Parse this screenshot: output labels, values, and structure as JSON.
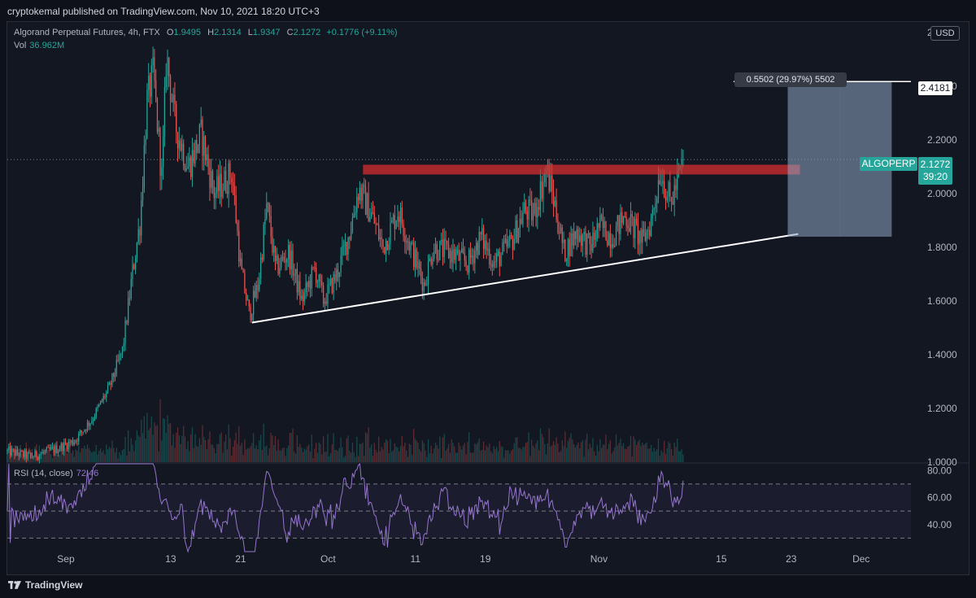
{
  "header": {
    "published": "cryptokemal published on TradingView.com, Nov 10, 2021 18:20 UTC+3"
  },
  "legend": {
    "title": "Algorand Perpetual Futures, 4h, FTX",
    "open_label": "O",
    "open": "1.9495",
    "high_label": "H",
    "high": "2.1314",
    "low_label": "L",
    "low": "1.9347",
    "close_label": "C",
    "close": "2.1272",
    "change": "+0.1776 (+9.11%)",
    "vol_label": "Vol",
    "vol": "36.962M"
  },
  "rsi_legend": {
    "label": "RSI (14, close)",
    "value": "72.46"
  },
  "currency": "USD",
  "measure_label": "0.5502 (29.97%) 5502",
  "target_tag": "2.4181",
  "ticker_tag": {
    "symbol": "ALGOPERP",
    "price": "2.1272",
    "countdown": "39:20"
  },
  "footer": {
    "brand": "TradingView"
  },
  "colors": {
    "up": "#26a69a",
    "down": "#ef5350",
    "rsi": "#9575cd",
    "resistance": "#d32f2f",
    "box": "#8fa6c4",
    "background": "#131722"
  },
  "chart_data": {
    "type": "candlestick",
    "title": "Algorand Perpetual Futures, 4h, FTX",
    "ylim": [
      1.0,
      2.64
    ],
    "y_ticks": [
      "2.6000",
      "2.4000",
      "2.2000",
      "2.0000",
      "1.8000",
      "1.6000",
      "1.4000",
      "1.2000",
      "1.0000"
    ],
    "y_tick_values": [
      2.6,
      2.4,
      2.2,
      2.0,
      1.8,
      1.6,
      1.4,
      1.2,
      1.0
    ],
    "x_labels": [
      "Sep",
      "13",
      "21",
      "Oct",
      "11",
      "19",
      "Nov",
      "15",
      "23",
      "Dec"
    ],
    "x_label_days": [
      0,
      12,
      20,
      30,
      40,
      48,
      61,
      75,
      83,
      91
    ],
    "x_range_days": [
      -6.7,
      96.7
    ],
    "data_end_day": 70.7,
    "price_path": [
      [
        -6.7,
        1.04
      ],
      [
        -4,
        1.02
      ],
      [
        -1,
        1.05
      ],
      [
        1,
        1.08
      ],
      [
        3,
        1.16
      ],
      [
        5,
        1.28
      ],
      [
        6.5,
        1.42
      ],
      [
        7.6,
        1.7
      ],
      [
        8.5,
        1.9
      ],
      [
        9.3,
        2.35
      ],
      [
        10,
        2.45
      ],
      [
        11,
        2.05
      ],
      [
        11.5,
        2.52
      ],
      [
        12.5,
        2.26
      ],
      [
        14,
        2.1
      ],
      [
        15.5,
        2.22
      ],
      [
        17,
        2.0
      ],
      [
        19,
        2.08
      ],
      [
        20,
        1.72
      ],
      [
        21,
        1.55
      ],
      [
        22,
        1.66
      ],
      [
        23,
        1.96
      ],
      [
        24,
        1.72
      ],
      [
        25.5,
        1.78
      ],
      [
        27,
        1.6
      ],
      [
        28.5,
        1.72
      ],
      [
        29.5,
        1.6
      ],
      [
        31,
        1.7
      ],
      [
        32.5,
        1.86
      ],
      [
        33.5,
        2.02
      ],
      [
        35,
        1.92
      ],
      [
        36.3,
        1.8
      ],
      [
        38,
        1.94
      ],
      [
        40,
        1.75
      ],
      [
        41,
        1.66
      ],
      [
        42,
        1.8
      ],
      [
        44,
        1.78
      ],
      [
        46,
        1.74
      ],
      [
        47.5,
        1.84
      ],
      [
        49,
        1.74
      ],
      [
        51,
        1.82
      ],
      [
        52.5,
        1.94
      ],
      [
        53.5,
        1.92
      ],
      [
        55,
        2.09
      ],
      [
        56,
        1.95
      ],
      [
        57,
        1.78
      ],
      [
        58.5,
        1.86
      ],
      [
        60,
        1.8
      ],
      [
        61,
        1.88
      ],
      [
        62.5,
        1.84
      ],
      [
        64,
        1.92
      ],
      [
        66,
        1.82
      ],
      [
        67,
        1.9
      ],
      [
        68,
        2.09
      ],
      [
        69.2,
        1.96
      ],
      [
        70.7,
        2.1272
      ]
    ],
    "rsi": {
      "label": "RSI (14, close)",
      "ylim": [
        20,
        85
      ],
      "y_ticks": [
        "80.00",
        "60.00",
        "40.00"
      ],
      "y_tick_values": [
        80,
        60,
        40
      ],
      "bands": [
        70,
        50,
        30
      ],
      "last": 72.46
    },
    "annotations": {
      "resistance_level": 2.09,
      "resistance_days": [
        34,
        84
      ],
      "trendline": {
        "from": [
          21.3,
          1.52
        ],
        "to": [
          83.8,
          1.85
        ]
      },
      "long_position": {
        "days": [
          82.6,
          94.5
        ],
        "entry": 2.1272,
        "target": 2.4181,
        "stop": 1.84
      },
      "target_line": {
        "days": [
          76.4,
          96.7
        ],
        "price": 2.4181
      },
      "last_price": 2.1272
    }
  }
}
